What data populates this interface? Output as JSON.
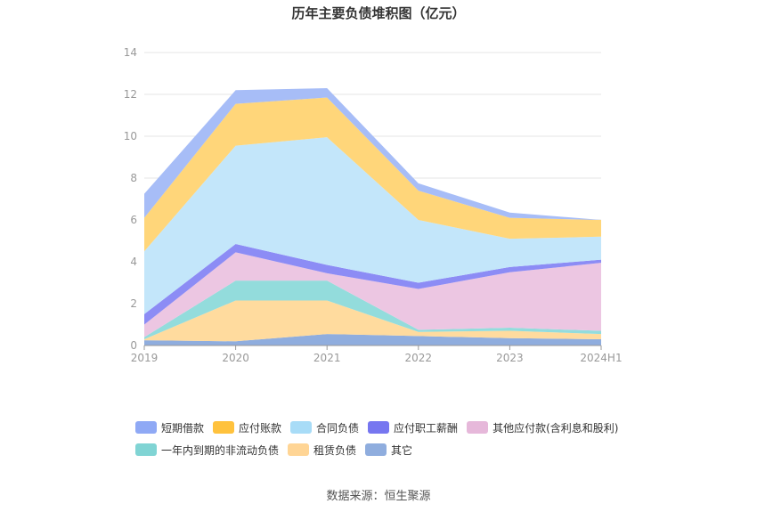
{
  "title": "历年主要负债堆积图（亿元）",
  "source": "数据来源：恒生聚源",
  "chart_data": {
    "type": "area",
    "stacked": true,
    "categories": [
      "2019",
      "2020",
      "2021",
      "2022",
      "2023",
      "2024H1"
    ],
    "ylim": [
      0,
      14
    ],
    "yticks": [
      0,
      2,
      4,
      6,
      8,
      10,
      12,
      14
    ],
    "grid": true,
    "legend_position": "bottom",
    "series": [
      {
        "name": "其它",
        "color": "#8fadde",
        "values": [
          0.25,
          0.2,
          0.55,
          0.45,
          0.35,
          0.3
        ]
      },
      {
        "name": "租赁负债",
        "color": "#ffdb9e",
        "values": [
          0.05,
          1.95,
          1.6,
          0.2,
          0.35,
          0.25
        ]
      },
      {
        "name": "一年内到期的非流动负债",
        "color": "#93dcdc",
        "values": [
          0.1,
          0.95,
          0.95,
          0.1,
          0.15,
          0.15
        ]
      },
      {
        "name": "其他应付款(含利息和股利)",
        "color": "#ecc6e2",
        "values": [
          0.6,
          1.35,
          0.35,
          1.95,
          2.65,
          3.25
        ]
      },
      {
        "name": "应付职工薪酬",
        "color": "#8c8cf5",
        "values": [
          0.5,
          0.4,
          0.4,
          0.3,
          0.25,
          0.15
        ]
      },
      {
        "name": "合同负债",
        "color": "#c3e6fa",
        "values": [
          3.0,
          4.7,
          6.1,
          3.0,
          1.35,
          1.1
        ]
      },
      {
        "name": "应付账款",
        "color": "#ffd67a",
        "values": [
          1.6,
          2.0,
          1.9,
          1.4,
          1.0,
          0.8
        ]
      },
      {
        "name": "短期借款",
        "color": "#a7bdf7",
        "values": [
          1.15,
          0.65,
          0.45,
          0.35,
          0.25,
          0.0
        ]
      }
    ]
  },
  "legend": [
    {
      "name": "短期借款",
      "color": "#8fa9f5"
    },
    {
      "name": "应付账款",
      "color": "#ffc23d"
    },
    {
      "name": "合同负债",
      "color": "#a8dcf7"
    },
    {
      "name": "应付职工薪酬",
      "color": "#7676f0"
    },
    {
      "name": "其他应付款(含利息和股利)",
      "color": "#e6b8da"
    },
    {
      "name": "一年内到期的非流动负债",
      "color": "#80d4d4"
    },
    {
      "name": "租赁负债",
      "color": "#ffd595"
    },
    {
      "name": "其它",
      "color": "#8fadde"
    }
  ]
}
